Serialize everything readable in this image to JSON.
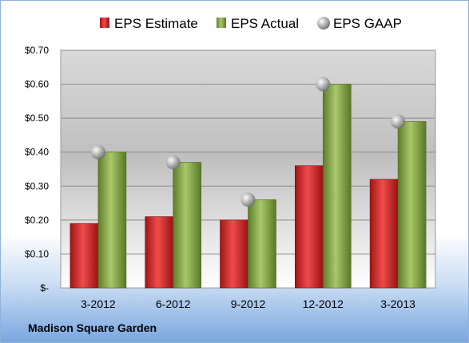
{
  "chart_data": {
    "type": "bar",
    "categories": [
      "3-2012",
      "6-2012",
      "9-2012",
      "12-2012",
      "3-2013"
    ],
    "series": [
      {
        "name": "EPS Estimate",
        "values": [
          0.19,
          0.21,
          0.2,
          0.36,
          0.32
        ],
        "color": "#d42a2a"
      },
      {
        "name": "EPS Actual",
        "values": [
          0.4,
          0.37,
          0.26,
          0.6,
          0.49
        ],
        "color": "#8fb04a"
      },
      {
        "name": "EPS GAAP",
        "values": [
          0.4,
          0.37,
          0.26,
          0.6,
          0.49
        ],
        "marker": "sphere",
        "color": "#a8a8a8"
      }
    ],
    "ylim": [
      0,
      0.7
    ],
    "yticks": [
      0,
      0.1,
      0.2,
      0.3,
      0.4,
      0.5,
      0.6,
      0.7
    ],
    "ytick_labels": [
      "$-",
      "$0.10",
      "$0.20",
      "$0.30",
      "$0.40",
      "$0.50",
      "$0.60",
      "$0.70"
    ],
    "grid": true,
    "legend_position": "top"
  },
  "footer": {
    "company": "Madison Square Garden"
  }
}
